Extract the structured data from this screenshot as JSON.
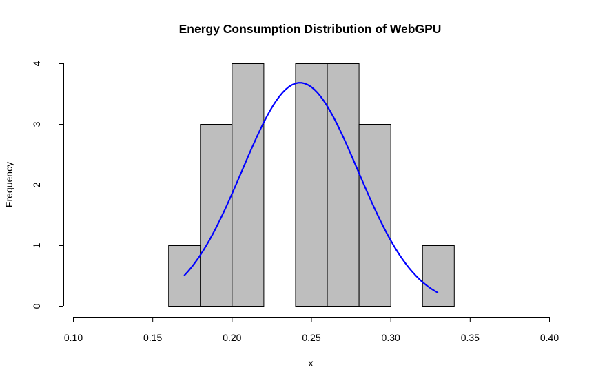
{
  "chart_data": {
    "type": "bar",
    "subtype": "histogram",
    "title": "Energy Consumption Distribution of WebGPU",
    "xlabel": "x",
    "ylabel": "Frequency",
    "xlim": [
      0.1,
      0.4
    ],
    "ylim": [
      0,
      4
    ],
    "x_ticks": [
      "0.10",
      "0.15",
      "0.20",
      "0.25",
      "0.30",
      "0.35",
      "0.40"
    ],
    "y_ticks": [
      "0",
      "1",
      "2",
      "3",
      "4"
    ],
    "bins": [
      {
        "start": 0.16,
        "end": 0.18,
        "count": 1
      },
      {
        "start": 0.18,
        "end": 0.2,
        "count": 3
      },
      {
        "start": 0.2,
        "end": 0.22,
        "count": 4
      },
      {
        "start": 0.22,
        "end": 0.24,
        "count": 0
      },
      {
        "start": 0.24,
        "end": 0.26,
        "count": 4
      },
      {
        "start": 0.26,
        "end": 0.28,
        "count": 4
      },
      {
        "start": 0.28,
        "end": 0.3,
        "count": 3
      },
      {
        "start": 0.3,
        "end": 0.32,
        "count": 0
      },
      {
        "start": 0.32,
        "end": 0.34,
        "count": 1
      }
    ],
    "curve": {
      "kind": "normal density scaled",
      "x_range": [
        0.17,
        0.33
      ],
      "peak_x": 0.243,
      "peak_y": 3.68,
      "points": [
        {
          "x": 0.17,
          "y": 0.84
        },
        {
          "x": 0.19,
          "y": 1.75
        },
        {
          "x": 0.21,
          "y": 2.85
        },
        {
          "x": 0.23,
          "y": 3.55
        },
        {
          "x": 0.243,
          "y": 3.68
        },
        {
          "x": 0.26,
          "y": 3.43
        },
        {
          "x": 0.28,
          "y": 2.55
        },
        {
          "x": 0.3,
          "y": 1.57
        },
        {
          "x": 0.33,
          "y": 0.51
        }
      ]
    },
    "colors": {
      "bar_fill": "#bebebe",
      "bar_stroke": "#000000",
      "curve": "#0000ff"
    },
    "grid": false
  }
}
